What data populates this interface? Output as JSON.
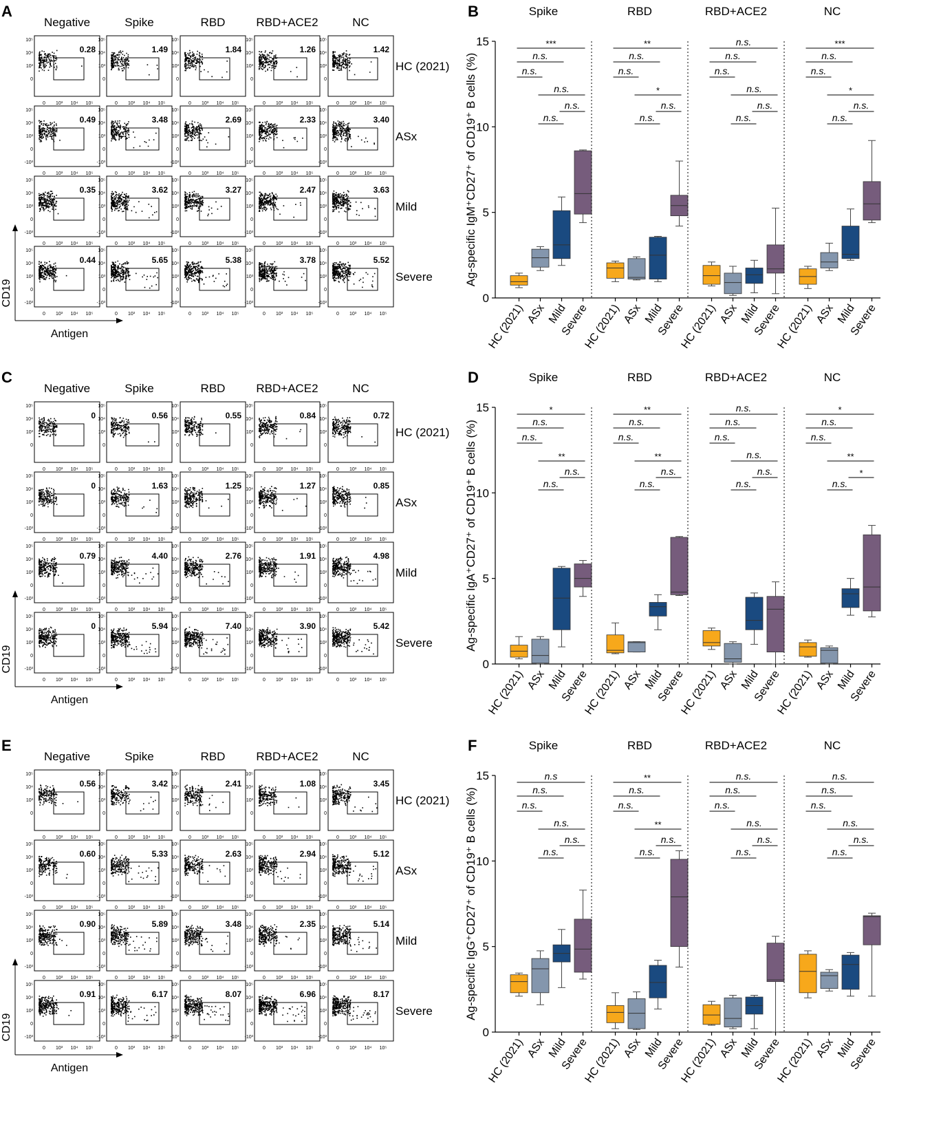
{
  "panels": [
    {
      "flow": "A",
      "box": "B",
      "ylabel": "Ag-specific IgM⁺CD27⁺ of CD19⁺ B cells (%)",
      "values": [
        [
          0.28,
          1.49,
          1.84,
          1.26,
          1.42
        ],
        [
          0.49,
          3.48,
          2.69,
          2.33,
          3.4
        ],
        [
          0.35,
          3.62,
          3.27,
          2.47,
          3.63
        ],
        [
          0.44,
          5.65,
          5.38,
          3.78,
          5.52
        ]
      ],
      "groups": [
        {
          "name": "Spike",
          "sig": [
            "***",
            "n.s.",
            "n.s.",
            "n.s.",
            "n.s.",
            "n.s."
          ],
          "boxes": [
            {
              "min": 0.6,
              "q1": 0.75,
              "med": 0.95,
              "q3": 1.3,
              "max": 1.45
            },
            {
              "min": 1.6,
              "q1": 1.8,
              "med": 2.35,
              "q3": 2.85,
              "max": 3.0
            },
            {
              "min": 1.9,
              "q1": 2.3,
              "med": 3.1,
              "q3": 5.1,
              "max": 5.9
            },
            {
              "min": 4.4,
              "q1": 4.9,
              "med": 6.1,
              "q3": 8.6,
              "max": 8.65
            }
          ]
        },
        {
          "name": "RBD",
          "sig": [
            "**",
            "n.s.",
            "n.s.",
            "*",
            "n.s.",
            "n.s."
          ],
          "boxes": [
            {
              "min": 0.95,
              "q1": 1.15,
              "med": 1.75,
              "q3": 2.05,
              "max": 2.15
            },
            {
              "min": 1.05,
              "q1": 1.1,
              "med": 1.2,
              "q3": 2.3,
              "max": 2.4
            },
            {
              "min": 0.95,
              "q1": 1.1,
              "med": 2.5,
              "q3": 3.55,
              "max": 3.6
            },
            {
              "min": 4.2,
              "q1": 4.8,
              "med": 5.4,
              "q3": 6.0,
              "max": 8.0
            }
          ]
        },
        {
          "name": "RBD+ACE2",
          "sig": [
            "n.s.",
            "n.s.",
            "n.s.",
            "n.s.",
            "n.s.",
            "n.s."
          ],
          "boxes": [
            {
              "min": 0.7,
              "q1": 0.8,
              "med": 1.3,
              "q3": 1.9,
              "max": 2.1
            },
            {
              "min": 0.15,
              "q1": 0.25,
              "med": 0.9,
              "q3": 1.45,
              "max": 1.85
            },
            {
              "min": 0.3,
              "q1": 0.85,
              "med": 1.35,
              "q3": 1.75,
              "max": 2.2
            },
            {
              "min": 0.25,
              "q1": 1.45,
              "med": 1.7,
              "q3": 3.1,
              "max": 5.25
            }
          ]
        },
        {
          "name": "NC",
          "sig": [
            "***",
            "n.s.",
            "n.s.",
            "*",
            "n.s.",
            "n.s."
          ],
          "boxes": [
            {
              "min": 0.55,
              "q1": 0.8,
              "med": 1.25,
              "q3": 1.7,
              "max": 1.85
            },
            {
              "min": 1.6,
              "q1": 1.75,
              "med": 2.1,
              "q3": 2.65,
              "max": 3.2
            },
            {
              "min": 2.2,
              "q1": 2.3,
              "med": 2.55,
              "q3": 4.2,
              "max": 5.2
            },
            {
              "min": 4.4,
              "q1": 4.55,
              "med": 5.5,
              "q3": 6.8,
              "max": 9.2
            }
          ]
        }
      ]
    },
    {
      "flow": "C",
      "box": "D",
      "ylabel": "Ag-specific IgA⁺CD27⁺ of CD19⁺ B cells (%)",
      "values": [
        [
          0,
          0.56,
          0.55,
          0.84,
          0.72
        ],
        [
          0,
          1.63,
          1.25,
          1.27,
          0.85
        ],
        [
          0.79,
          4.4,
          2.76,
          1.91,
          4.98
        ],
        [
          0,
          5.94,
          7.4,
          3.9,
          5.42
        ]
      ],
      "groups": [
        {
          "name": "Spike",
          "sig": [
            "*",
            "n.s.",
            "n.s.",
            "**",
            "n.s.",
            "n.s."
          ],
          "boxes": [
            {
              "min": 0.3,
              "q1": 0.4,
              "med": 0.75,
              "q3": 1.1,
              "max": 1.6
            },
            {
              "min": 0.0,
              "q1": 0.05,
              "med": 0.5,
              "q3": 1.45,
              "max": 1.6
            },
            {
              "min": 1.0,
              "q1": 2.0,
              "med": 3.85,
              "q3": 5.6,
              "max": 5.7
            },
            {
              "min": 3.95,
              "q1": 4.5,
              "med": 5.0,
              "q3": 5.85,
              "max": 6.05
            }
          ]
        },
        {
          "name": "RBD",
          "sig": [
            "**",
            "n.s.",
            "n.s.",
            "**",
            "n.s.",
            "n.s."
          ],
          "boxes": [
            {
              "min": 0.6,
              "q1": 0.65,
              "med": 0.8,
              "q3": 1.7,
              "max": 2.4
            },
            {
              "min": 0.7,
              "q1": 0.7,
              "med": 1.25,
              "q3": 1.3,
              "max": 1.3
            },
            {
              "min": 2.0,
              "q1": 2.8,
              "med": 3.35,
              "q3": 3.6,
              "max": 4.05
            },
            {
              "min": 4.0,
              "q1": 4.05,
              "med": 4.2,
              "q3": 7.4,
              "max": 7.45
            }
          ]
        },
        {
          "name": "RBD+ACE2",
          "sig": [
            "n.s.",
            "n.s.",
            "n.s.",
            "n.s.",
            "n.s.",
            "n.s."
          ],
          "boxes": [
            {
              "min": 0.85,
              "q1": 1.05,
              "med": 1.25,
              "q3": 1.95,
              "max": 2.1
            },
            {
              "min": 0.0,
              "q1": 0.1,
              "med": 0.3,
              "q3": 1.2,
              "max": 1.3
            },
            {
              "min": 1.15,
              "q1": 2.0,
              "med": 2.55,
              "q3": 3.9,
              "max": 4.15
            },
            {
              "min": 0.0,
              "q1": 0.7,
              "med": 3.2,
              "q3": 3.95,
              "max": 4.8
            }
          ]
        },
        {
          "name": "NC",
          "sig": [
            "*",
            "n.s.",
            "n.s.",
            "**",
            "*",
            "n.s."
          ],
          "boxes": [
            {
              "min": 0.4,
              "q1": 0.45,
              "med": 1.0,
              "q3": 1.25,
              "max": 1.4
            },
            {
              "min": 0.0,
              "q1": 0.05,
              "med": 0.8,
              "q3": 0.95,
              "max": 1.05
            },
            {
              "min": 2.85,
              "q1": 3.3,
              "med": 4.1,
              "q3": 4.4,
              "max": 5.0
            },
            {
              "min": 2.75,
              "q1": 3.1,
              "med": 4.5,
              "q3": 7.55,
              "max": 8.1
            }
          ]
        }
      ]
    },
    {
      "flow": "E",
      "box": "F",
      "ylabel": "Ag-specific IgG⁺CD27⁺ of CD19⁺ B cells (%)",
      "values": [
        [
          0.56,
          3.42,
          2.41,
          1.08,
          3.45
        ],
        [
          0.6,
          5.33,
          2.63,
          2.94,
          5.12
        ],
        [
          0.9,
          5.89,
          3.48,
          2.35,
          5.14
        ],
        [
          0.91,
          6.17,
          8.07,
          6.96,
          8.17
        ]
      ],
      "groups": [
        {
          "name": "Spike",
          "sig": [
            "n.s",
            "n.s.",
            "n.s.",
            "n.s.",
            "n.s.",
            "n.s."
          ],
          "boxes": [
            {
              "min": 2.1,
              "q1": 2.3,
              "med": 2.95,
              "q3": 3.35,
              "max": 3.45
            },
            {
              "min": 1.6,
              "q1": 2.3,
              "med": 3.7,
              "q3": 4.3,
              "max": 4.75
            },
            {
              "min": 2.6,
              "q1": 4.1,
              "med": 4.6,
              "q3": 5.1,
              "max": 6.0
            },
            {
              "min": 3.1,
              "q1": 3.5,
              "med": 4.85,
              "q3": 6.6,
              "max": 8.3
            }
          ]
        },
        {
          "name": "RBD",
          "sig": [
            "**",
            "n.s.",
            "n.s.",
            "**",
            "n.s.",
            "n.s."
          ],
          "boxes": [
            {
              "min": 0.2,
              "q1": 0.55,
              "med": 1.15,
              "q3": 1.55,
              "max": 2.3
            },
            {
              "min": 0.15,
              "q1": 0.2,
              "med": 1.1,
              "q3": 1.95,
              "max": 2.35
            },
            {
              "min": 1.35,
              "q1": 2.0,
              "med": 2.9,
              "q3": 3.9,
              "max": 4.2
            },
            {
              "min": 3.8,
              "q1": 5.0,
              "med": 7.9,
              "q3": 10.1,
              "max": 10.6
            }
          ]
        },
        {
          "name": "RBD+ACE2",
          "sig": [
            "n.s.",
            "n.s.",
            "n.s.",
            "n.s.",
            "n.s.",
            "n.s."
          ],
          "boxes": [
            {
              "min": 0.4,
              "q1": 0.45,
              "med": 1.0,
              "q3": 1.6,
              "max": 1.8
            },
            {
              "min": 0.2,
              "q1": 0.3,
              "med": 0.8,
              "q3": 2.0,
              "max": 2.15
            },
            {
              "min": 0.2,
              "q1": 1.05,
              "med": 1.55,
              "q3": 2.05,
              "max": 2.15
            },
            {
              "min": 0.0,
              "q1": 2.95,
              "med": 3.05,
              "q3": 5.2,
              "max": 5.6
            }
          ]
        },
        {
          "name": "NC",
          "sig": [
            "n.s.",
            "n.s.",
            "n.s.",
            "n.s.",
            "n.s.",
            "n.s."
          ],
          "boxes": [
            {
              "min": 2.0,
              "q1": 2.3,
              "med": 3.55,
              "q3": 4.55,
              "max": 4.75
            },
            {
              "min": 2.4,
              "q1": 2.55,
              "med": 3.3,
              "q3": 3.5,
              "max": 3.65
            },
            {
              "min": 2.1,
              "q1": 2.5,
              "med": 3.95,
              "q3": 4.5,
              "max": 4.65
            },
            {
              "min": 2.1,
              "q1": 5.1,
              "med": 6.75,
              "q3": 6.8,
              "max": 6.95
            }
          ]
        }
      ]
    }
  ],
  "flow_columns": [
    "Negative",
    "Spike",
    "RBD",
    "RBD+ACE2",
    "NC"
  ],
  "flow_rows": [
    "HC (2021)",
    "ASx",
    "Mild",
    "Severe"
  ],
  "flow_axis": {
    "y": "CD19",
    "x": "Antigen"
  },
  "flow_ticks": {
    "x": [
      "0",
      "10³",
      "10⁴",
      "10⁵"
    ],
    "y": [
      "10⁵",
      "10⁴",
      "10³",
      "0",
      "-10³"
    ],
    "y_row1": [
      "10⁵",
      "10⁴",
      "10³",
      "0"
    ]
  },
  "box_categories": [
    "HC (2021)",
    "ASx",
    "Mild",
    "Severe"
  ],
  "box_yticks": [
    "0",
    "5",
    "10",
    "15"
  ],
  "colors": {
    "HC (2021)": "#f7a81b",
    "ASx": "#8496ad",
    "Mild": "#1a4a80",
    "Severe": "#765c7c"
  },
  "chart_data": {
    "type": "box",
    "categories": [
      "HC (2021)",
      "ASx",
      "Mild",
      "Severe"
    ],
    "groups": [
      "Spike",
      "RBD",
      "RBD+ACE2",
      "NC"
    ],
    "ylim": [
      0,
      15
    ],
    "note": "Box values (min,q1,median,q3,max) per group are stored in panels[].groups[].boxes; flow gate percentages in panels[].values"
  }
}
